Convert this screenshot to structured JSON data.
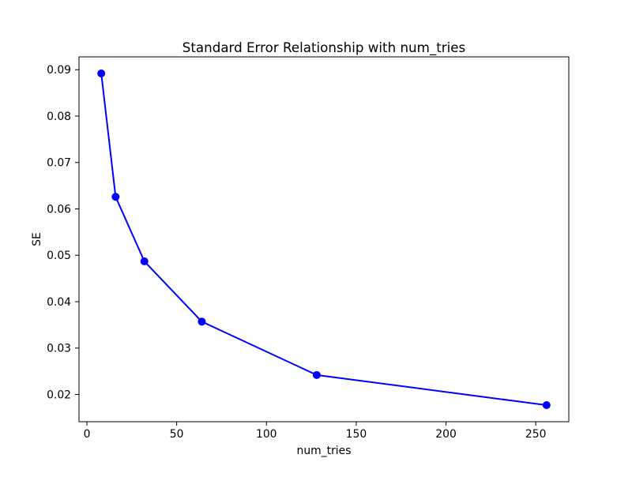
{
  "chart_data": {
    "type": "line",
    "title": "Standard Error Relationship with num_tries",
    "xlabel": "num_tries",
    "ylabel": "SE",
    "x": [
      8,
      16,
      32,
      64,
      128,
      256
    ],
    "y": [
      0.0892,
      0.0626,
      0.0487,
      0.0357,
      0.0242,
      0.0177
    ],
    "xlim": [
      -4.4,
      268.4
    ],
    "ylim": [
      0.01413,
      0.09277
    ],
    "xticks": [
      0,
      50,
      100,
      150,
      200,
      250
    ],
    "xtick_labels": [
      "0",
      "50",
      "100",
      "150",
      "200",
      "250"
    ],
    "yticks": [
      0.02,
      0.03,
      0.04,
      0.05,
      0.06,
      0.07,
      0.08,
      0.09
    ],
    "ytick_labels": [
      "0.02",
      "0.03",
      "0.04",
      "0.05",
      "0.06",
      "0.07",
      "0.08",
      "0.09"
    ],
    "line_color": "#0000ff",
    "marker": "circle",
    "grid": false,
    "legend": null,
    "background_color": "#ffffff"
  }
}
